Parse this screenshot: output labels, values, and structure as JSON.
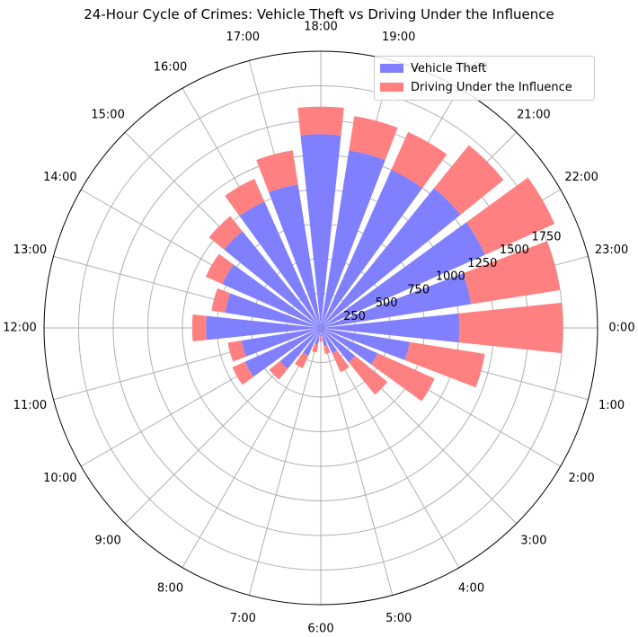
{
  "chart_data": {
    "type": "polar-stacked-bar",
    "title": "24-Hour Cycle of Crimes: Vehicle Theft vs Driving Under the Influence",
    "direction": "clockwise",
    "zero_location": "east",
    "categories": [
      "0:00",
      "1:00",
      "2:00",
      "3:00",
      "4:00",
      "5:00",
      "6:00",
      "7:00",
      "8:00",
      "9:00",
      "10:00",
      "11:00",
      "12:00",
      "13:00",
      "14:00",
      "15:00",
      "16:00",
      "17:00",
      "18:00",
      "19:00",
      "20:00",
      "21:00",
      "22:00",
      "23:00"
    ],
    "series": [
      {
        "name": "Vehicle Theft",
        "color": "#8080ff",
        "values": [
          1000,
          650,
          450,
          320,
          200,
          130,
          60,
          120,
          220,
          380,
          600,
          580,
          830,
          700,
          780,
          900,
          1000,
          1050,
          1400,
          1300,
          1250,
          1300,
          1300,
          1100
        ]
      },
      {
        "name": "Driving Under the Influence",
        "color": "#ff8080",
        "values": [
          750,
          550,
          450,
          300,
          150,
          60,
          40,
          60,
          100,
          100,
          100,
          100,
          100,
          100,
          130,
          140,
          180,
          250,
          200,
          250,
          300,
          400,
          550,
          650
        ]
      }
    ],
    "r_ticks": [
      "250",
      "500",
      "750",
      "1000",
      "1250",
      "1500",
      "1750"
    ],
    "rlim": [
      0,
      2000
    ],
    "legend": "top-right",
    "grid": true
  }
}
